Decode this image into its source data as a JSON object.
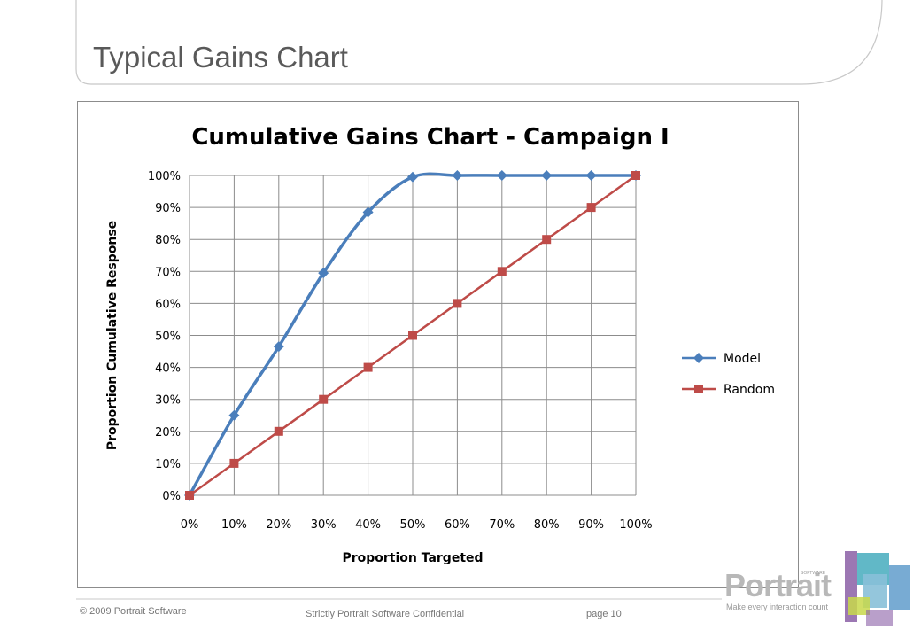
{
  "slide": {
    "title": "Typical Gains Chart",
    "footer_copyright": "© 2009 Portrait Software",
    "footer_confidential": "Strictly Portrait Software Confidential",
    "footer_page": "page 10"
  },
  "logo": {
    "wordmark": "Portrait",
    "small_text": "SOFTWARE",
    "tagline": "Make every interaction count"
  },
  "colors": {
    "model": "#4a7ebb",
    "random": "#be4b48",
    "grid": "#8c8c8c",
    "title_text": "#595959"
  },
  "chart_data": {
    "type": "line",
    "title": "Cumulative Gains Chart - Campaign I",
    "xlabel": "Proportion Targeted",
    "ylabel": "Proportion Cumulative Response",
    "x": [
      0,
      10,
      20,
      30,
      40,
      50,
      60,
      70,
      80,
      90,
      100
    ],
    "x_tick_labels": [
      "0%",
      "10%",
      "20%",
      "30%",
      "40%",
      "50%",
      "60%",
      "70%",
      "80%",
      "90%",
      "100%"
    ],
    "y_tick_labels": [
      "0%",
      "10%",
      "20%",
      "30%",
      "40%",
      "50%",
      "60%",
      "70%",
      "80%",
      "90%",
      "100%"
    ],
    "xlim": [
      0,
      100
    ],
    "ylim": [
      0,
      100
    ],
    "grid": true,
    "legend_position": "right",
    "series": [
      {
        "name": "Model",
        "marker": "diamond",
        "smooth": true,
        "values": [
          0,
          25,
          46.5,
          69.5,
          88.5,
          99.5,
          100,
          100,
          100,
          100,
          100
        ]
      },
      {
        "name": "Random",
        "marker": "square",
        "smooth": false,
        "values": [
          0,
          10,
          20,
          30,
          40,
          50,
          60,
          70,
          80,
          90,
          100
        ]
      }
    ]
  }
}
